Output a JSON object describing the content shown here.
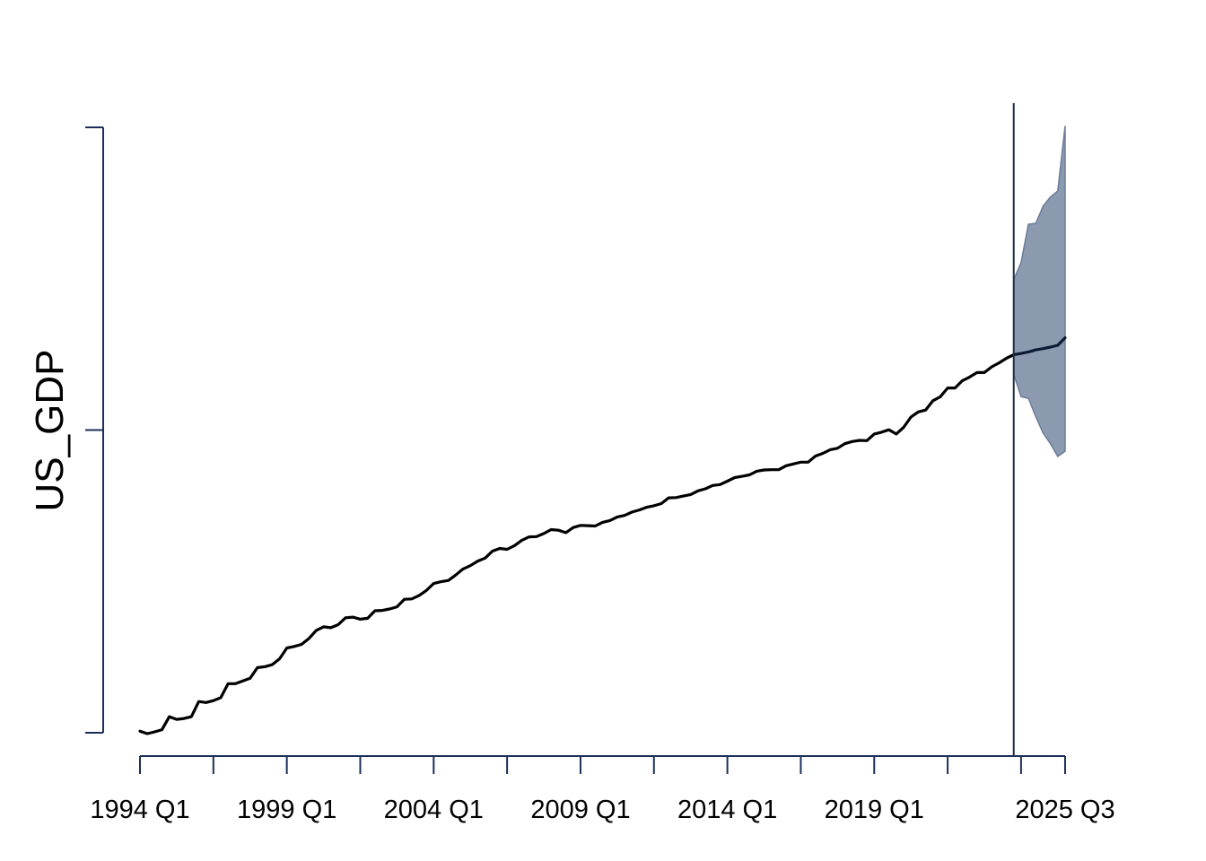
{
  "chart_data": {
    "type": "line",
    "title": "",
    "xlabel": "",
    "ylabel": "US_GDP",
    "x_tick_labels": [
      {
        "t": 0,
        "label": "1994 Q1"
      },
      {
        "t": 20,
        "label": "1999 Q1"
      },
      {
        "t": 40,
        "label": "2004 Q1"
      },
      {
        "t": 60,
        "label": "2009 Q1"
      },
      {
        "t": 80,
        "label": "2014 Q1"
      },
      {
        "t": 100,
        "label": "2019 Q1"
      },
      {
        "t": 126,
        "label": "2025 Q3"
      }
    ],
    "x_minor_ticks": [
      10,
      30,
      50,
      70,
      90,
      110,
      120
    ],
    "x_range": [
      0,
      126
    ],
    "y_range": [
      0,
      2
    ],
    "y_ticks": [
      0,
      1,
      2
    ],
    "forecast_start": 119,
    "series": [
      {
        "name": "US_GDP",
        "x": [
          0,
          1,
          2,
          3,
          4,
          5,
          6,
          7,
          8,
          9,
          10,
          11,
          12,
          13,
          14,
          15,
          16,
          17,
          18,
          19,
          20,
          21,
          22,
          23,
          24,
          25,
          26,
          27,
          28,
          29,
          30,
          31,
          32,
          33,
          34,
          35,
          36,
          37,
          38,
          39,
          40,
          41,
          42,
          43,
          44,
          45,
          46,
          47,
          48,
          49,
          50,
          51,
          52,
          53,
          54,
          55,
          56,
          57,
          58,
          59,
          60,
          61,
          62,
          63,
          64,
          65,
          66,
          67,
          68,
          69,
          70,
          71,
          72,
          73,
          74,
          75,
          76,
          77,
          78,
          79,
          80,
          81,
          82,
          83,
          84,
          85,
          86,
          87,
          88,
          89,
          90,
          91,
          92,
          93,
          94,
          95,
          96,
          97,
          98,
          99,
          100,
          101,
          102,
          103,
          104,
          105,
          106,
          107,
          108,
          109,
          110,
          111,
          112,
          113,
          114,
          115,
          116,
          117,
          118,
          119
        ],
        "values": [
          0.005,
          -0.003,
          0.003,
          0.01,
          0.053,
          0.044,
          0.047,
          0.053,
          0.103,
          0.1,
          0.106,
          0.116,
          0.162,
          0.162,
          0.171,
          0.18,
          0.215,
          0.218,
          0.225,
          0.244,
          0.28,
          0.285,
          0.292,
          0.311,
          0.338,
          0.35,
          0.347,
          0.357,
          0.38,
          0.382,
          0.375,
          0.378,
          0.403,
          0.404,
          0.409,
          0.416,
          0.441,
          0.442,
          0.453,
          0.47,
          0.493,
          0.499,
          0.503,
          0.521,
          0.541,
          0.552,
          0.567,
          0.577,
          0.6,
          0.609,
          0.606,
          0.618,
          0.636,
          0.647,
          0.648,
          0.658,
          0.671,
          0.669,
          0.661,
          0.678,
          0.685,
          0.684,
          0.683,
          0.695,
          0.701,
          0.713,
          0.718,
          0.729,
          0.736,
          0.745,
          0.75,
          0.757,
          0.776,
          0.777,
          0.782,
          0.787,
          0.799,
          0.806,
          0.817,
          0.82,
          0.831,
          0.843,
          0.847,
          0.852,
          0.864,
          0.868,
          0.869,
          0.869,
          0.882,
          0.888,
          0.894,
          0.894,
          0.914,
          0.923,
          0.935,
          0.94,
          0.955,
          0.962,
          0.966,
          0.965,
          0.987,
          0.993,
          1.001,
          0.987,
          1.009,
          1.043,
          1.06,
          1.066,
          1.097,
          1.11,
          1.139,
          1.139,
          1.163,
          1.175,
          1.19,
          1.19,
          1.209,
          1.222,
          1.237,
          1.249
        ]
      },
      {
        "name": "forecast",
        "x": [
          119,
          120,
          121,
          122,
          123,
          124,
          125,
          126
        ],
        "values": [
          1.249,
          1.253,
          1.258,
          1.265,
          1.269,
          1.274,
          1.28,
          1.305
        ]
      }
    ],
    "interval": {
      "x": [
        119,
        120,
        121,
        122,
        123,
        124,
        125,
        126
      ],
      "upper": [
        1.497,
        1.553,
        1.68,
        1.683,
        1.74,
        1.77,
        1.79,
        2.005
      ],
      "lower": [
        1.185,
        1.11,
        1.105,
        1.044,
        0.99,
        0.955,
        0.913,
        0.93
      ]
    },
    "colors": {
      "series": "#000000",
      "forecast": "#0d1a33",
      "interval_fill": "#8c9ab0",
      "interval_edge": "#6b7c98",
      "axis": "#1c2f5a",
      "forecast_line": "#1c2f45"
    }
  }
}
